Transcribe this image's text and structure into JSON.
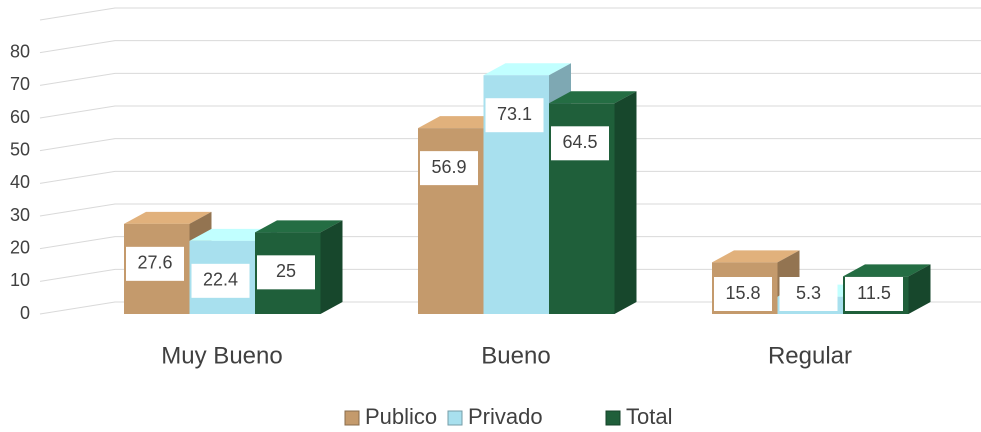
{
  "chart_data": {
    "type": "bar3d",
    "categories": [
      "Muy Bueno",
      "Bueno",
      "Regular"
    ],
    "series": [
      {
        "name": "Publico",
        "color": "#c49a6c",
        "values": [
          27.6,
          56.9,
          15.8
        ]
      },
      {
        "name": "Privado",
        "color": "#a8e0ee",
        "values": [
          22.4,
          73.1,
          5.3
        ]
      },
      {
        "name": "Total",
        "color": "#1f5f3a",
        "values": [
          25,
          64.5,
          11.5
        ]
      }
    ],
    "ylim": [
      0,
      90
    ],
    "yticks": [
      0,
      10,
      20,
      30,
      40,
      50,
      60,
      70,
      80
    ],
    "grid": true,
    "legend": "bottom"
  }
}
